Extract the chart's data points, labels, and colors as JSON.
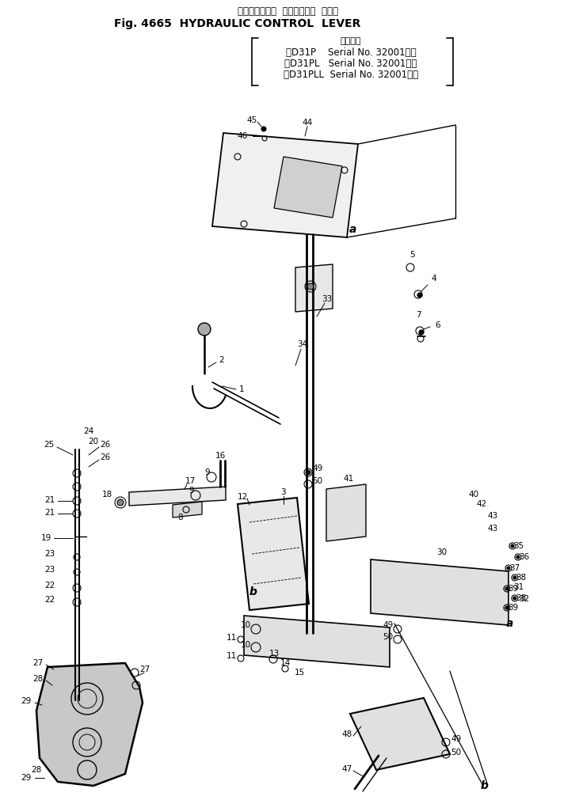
{
  "title_jp": "ハイドロリック  コントロール  レバー",
  "title_en": "Fig. 4665  HYDRAULIC CONTROL  LEVER",
  "serial_header": "適用号機",
  "serial_lines": [
    "（D31P    Serial No. 32001～）",
    "（D31PL   Serial No. 32001～）",
    "（D31PLL  Serial No. 32001～）"
  ],
  "bg_color": "#ffffff",
  "fig_width": 7.26,
  "fig_height": 10.11,
  "dpi": 100
}
